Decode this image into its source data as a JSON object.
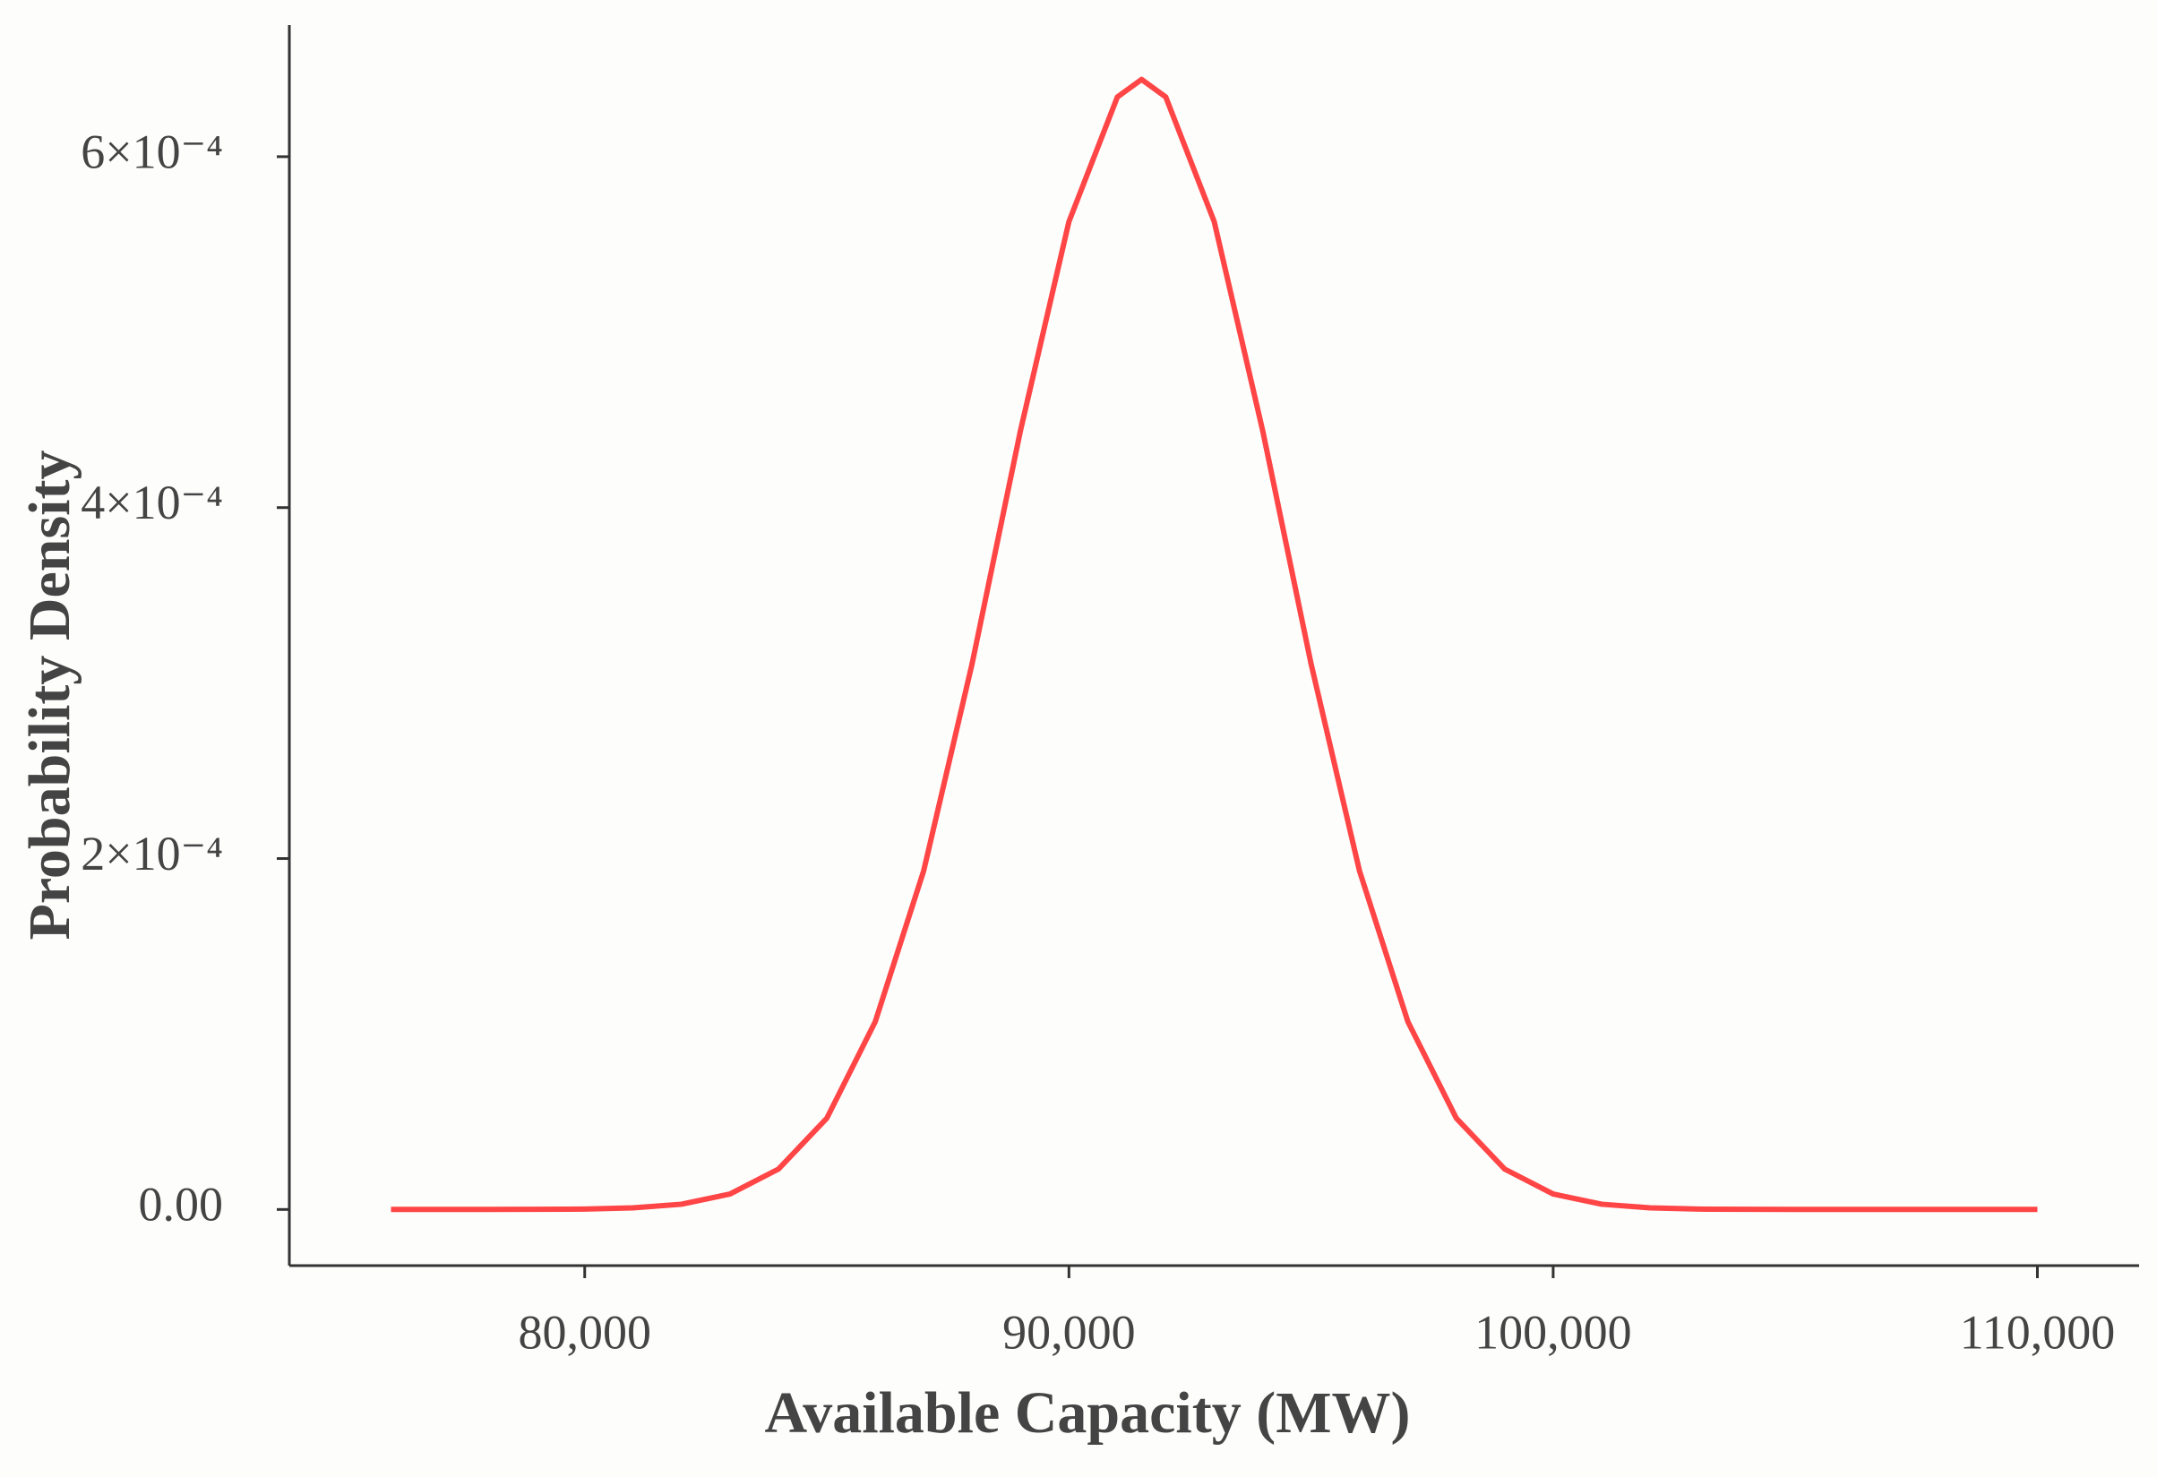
{
  "chart_data": {
    "type": "line",
    "x_label": "Available Capacity (MW)",
    "y_label": "Probability Density",
    "x": [
      76000,
      77000,
      78000,
      79000,
      80000,
      81000,
      82000,
      83000,
      84000,
      85000,
      86000,
      87000,
      88000,
      89000,
      90000,
      91000,
      91500,
      92000,
      93000,
      94000,
      95000,
      96000,
      97000,
      98000,
      99000,
      100000,
      101000,
      102000,
      103000,
      104000,
      105000,
      106000,
      107000,
      108000,
      109000,
      110000
    ],
    "series": [
      {
        "name": "Density",
        "color": "#ff4545",
        "values": [
          0,
          0,
          0,
          1e-07,
          2e-07,
          9e-07,
          3e-06,
          8.8e-06,
          2.3e-05,
          5.2e-05,
          0.000107,
          0.000193,
          0.000311,
          0.000444,
          0.000563,
          0.000634,
          0.000644,
          0.000634,
          0.000563,
          0.000444,
          0.000311,
          0.000193,
          0.000107,
          5.2e-05,
          2.3e-05,
          8.8e-06,
          3e-06,
          9e-07,
          2e-07,
          1e-07,
          0,
          0,
          0,
          0,
          0,
          0
        ]
      }
    ],
    "xlim": [
      73900,
      112100
    ],
    "ylim": [
      -3.2e-05,
      0.000675
    ],
    "xticks": [
      {
        "value": 80000,
        "label": "80,000"
      },
      {
        "value": 90000,
        "label": "90,000"
      },
      {
        "value": 100000,
        "label": "100,000"
      },
      {
        "value": 110000,
        "label": "110,000"
      }
    ],
    "yticks": [
      {
        "value": 0,
        "label": "0.00"
      },
      {
        "value": 0.0002,
        "label": "2×10⁻⁴"
      },
      {
        "value": 0.0004,
        "label": "4×10⁻⁴"
      },
      {
        "value": 0.0006,
        "label": "6×10⁻⁴"
      }
    ],
    "grid": false
  }
}
